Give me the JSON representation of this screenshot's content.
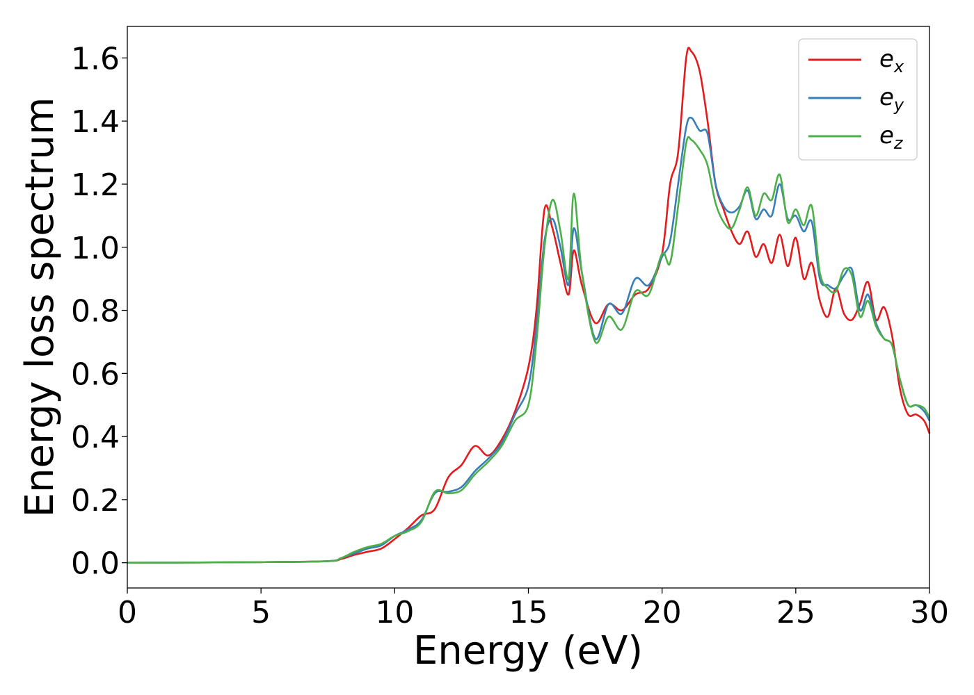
{
  "chart_data": {
    "type": "line",
    "title": "",
    "xlabel": "Energy (eV)",
    "ylabel": "Energy loss spectrum",
    "xlim": [
      0,
      30
    ],
    "ylim": [
      -0.08,
      1.7
    ],
    "xticks": [
      0,
      5,
      10,
      15,
      20,
      25,
      30
    ],
    "xtick_labels": [
      "0",
      "5",
      "10",
      "15",
      "20",
      "25",
      "30"
    ],
    "yticks": [
      0.0,
      0.2,
      0.4,
      0.6,
      0.8,
      1.0,
      1.2,
      1.4,
      1.6
    ],
    "ytick_labels": [
      "0.0",
      "0.2",
      "0.4",
      "0.6",
      "0.8",
      "1.0",
      "1.2",
      "1.4",
      "1.6"
    ],
    "grid": false,
    "legend_position": "top-right",
    "series": [
      {
        "name": "e_x",
        "label_base": "e",
        "label_sub": "x",
        "color": "#e41a1c",
        "x": [
          0,
          5,
          7.5,
          8,
          8.5,
          9,
          9.5,
          10,
          10.5,
          11,
          11.5,
          12,
          12.5,
          13,
          13.5,
          14,
          14.5,
          15,
          15.3,
          15.6,
          15.9,
          16.2,
          16.5,
          16.7,
          17,
          17.5,
          18,
          18.5,
          19,
          19.5,
          20,
          20.3,
          20.6,
          20.9,
          21.1,
          21.4,
          21.7,
          22,
          22.3,
          22.6,
          22.9,
          23.2,
          23.5,
          23.8,
          24.1,
          24.4,
          24.7,
          25,
          25.3,
          25.6,
          25.9,
          26.2,
          26.5,
          26.8,
          27.1,
          27.4,
          27.7,
          28,
          28.3,
          28.6,
          28.9,
          29.2,
          29.5,
          29.8,
          30
        ],
        "y": [
          0,
          0.002,
          0.005,
          0.012,
          0.025,
          0.035,
          0.045,
          0.075,
          0.11,
          0.15,
          0.17,
          0.27,
          0.31,
          0.37,
          0.34,
          0.39,
          0.48,
          0.62,
          0.8,
          1.12,
          1.06,
          0.95,
          0.85,
          0.99,
          0.88,
          0.76,
          0.82,
          0.8,
          0.85,
          0.87,
          0.98,
          1.2,
          1.3,
          1.6,
          1.62,
          1.56,
          1.4,
          1.2,
          1.12,
          1.05,
          1.01,
          1.05,
          0.97,
          1.01,
          0.95,
          1.04,
          0.94,
          1.03,
          0.9,
          0.95,
          0.83,
          0.78,
          0.87,
          0.79,
          0.77,
          0.82,
          0.89,
          0.77,
          0.81,
          0.72,
          0.55,
          0.47,
          0.47,
          0.45,
          0.41
        ]
      },
      {
        "name": "e_y",
        "label_base": "e",
        "label_sub": "y",
        "color": "#377eb8",
        "x": [
          0,
          5,
          7.5,
          8,
          8.5,
          9,
          9.5,
          10,
          10.5,
          11,
          11.5,
          12,
          12.5,
          13,
          13.5,
          14,
          14.5,
          15,
          15.3,
          15.6,
          15.9,
          16.2,
          16.5,
          16.7,
          17,
          17.5,
          18,
          18.5,
          19,
          19.5,
          20,
          20.3,
          20.6,
          20.9,
          21.1,
          21.4,
          21.7,
          22,
          22.3,
          22.6,
          22.9,
          23.2,
          23.5,
          23.8,
          24.1,
          24.4,
          24.7,
          25,
          25.3,
          25.6,
          25.9,
          26.2,
          26.5,
          26.8,
          27.1,
          27.4,
          27.7,
          28,
          28.3,
          28.6,
          28.9,
          29.2,
          29.5,
          29.8,
          30
        ],
        "y": [
          0,
          0.002,
          0.005,
          0.015,
          0.03,
          0.045,
          0.055,
          0.085,
          0.105,
          0.135,
          0.22,
          0.225,
          0.24,
          0.29,
          0.33,
          0.38,
          0.47,
          0.56,
          0.75,
          1.02,
          1.09,
          1.0,
          0.88,
          1.06,
          0.92,
          0.71,
          0.82,
          0.79,
          0.9,
          0.88,
          0.97,
          1.02,
          1.2,
          1.38,
          1.41,
          1.37,
          1.36,
          1.2,
          1.13,
          1.11,
          1.13,
          1.18,
          1.09,
          1.12,
          1.1,
          1.2,
          1.09,
          1.1,
          1.05,
          1.08,
          0.9,
          0.88,
          0.87,
          0.91,
          0.93,
          0.8,
          0.85,
          0.76,
          0.71,
          0.69,
          0.58,
          0.5,
          0.5,
          0.48,
          0.45
        ]
      },
      {
        "name": "e_z",
        "label_base": "e",
        "label_sub": "z",
        "color": "#4daf4a",
        "x": [
          0,
          5,
          7.5,
          8,
          8.5,
          9,
          9.5,
          10,
          10.5,
          11,
          11.5,
          12,
          12.5,
          13,
          13.5,
          14,
          14.5,
          15,
          15.3,
          15.6,
          15.9,
          16.2,
          16.5,
          16.7,
          17,
          17.5,
          18,
          18.5,
          19,
          19.5,
          20,
          20.3,
          20.6,
          20.9,
          21.1,
          21.4,
          21.7,
          22,
          22.3,
          22.6,
          22.9,
          23.2,
          23.5,
          23.8,
          24.1,
          24.4,
          24.7,
          25,
          25.3,
          25.6,
          25.9,
          26.2,
          26.5,
          26.8,
          27.1,
          27.4,
          27.7,
          28,
          28.3,
          28.6,
          28.9,
          29.2,
          29.5,
          29.8,
          30
        ],
        "y": [
          0,
          0.002,
          0.005,
          0.015,
          0.035,
          0.05,
          0.06,
          0.085,
          0.1,
          0.13,
          0.225,
          0.22,
          0.23,
          0.28,
          0.32,
          0.37,
          0.45,
          0.5,
          0.7,
          1.0,
          1.15,
          1.05,
          0.9,
          1.17,
          0.92,
          0.7,
          0.78,
          0.74,
          0.86,
          0.85,
          0.98,
          0.95,
          1.13,
          1.33,
          1.34,
          1.31,
          1.26,
          1.14,
          1.08,
          1.06,
          1.12,
          1.19,
          1.1,
          1.17,
          1.15,
          1.23,
          1.08,
          1.12,
          1.07,
          1.13,
          0.92,
          0.87,
          0.86,
          0.93,
          0.91,
          0.78,
          0.83,
          0.75,
          0.71,
          0.69,
          0.58,
          0.5,
          0.5,
          0.49,
          0.46
        ]
      }
    ]
  }
}
